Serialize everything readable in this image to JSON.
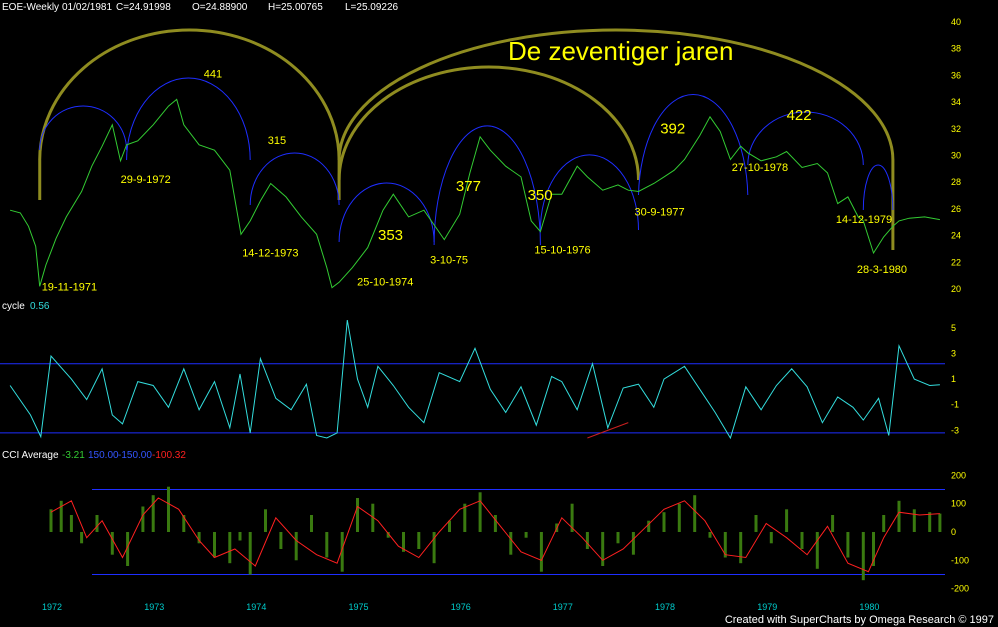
{
  "header": {
    "symbol": "EOE-Weekly",
    "date": "01/02/1981",
    "close": "C=24.91998",
    "open": "O=24.88900",
    "high": "H=25.00765",
    "low": "L=25.09226"
  },
  "footer": "Created with SuperCharts by Omega Research © 1997",
  "colors": {
    "price": "#33cc33",
    "cycle": "#33dddd",
    "cci_line": "#ff2020",
    "cci_hist": "#3a7a10",
    "band": "#1e2eff",
    "arc_big": "#8f8c20",
    "arc_small": "#1e2eff",
    "text_yellow": "#ffff00",
    "axis": "#ffff00",
    "xaxis": "#00cccc"
  },
  "chart_data": [
    {
      "type": "line",
      "name": "price-panel",
      "title": "De zeventiger jaren",
      "ylim": [
        20,
        40
      ],
      "yticks": [
        "20",
        "22",
        "24",
        "26",
        "28",
        "30",
        "32",
        "34",
        "36",
        "38",
        "40"
      ],
      "xlim": [
        1971.55,
        1980.75
      ],
      "series": [
        {
          "name": "",
          "x": [
            1971.6,
            1971.7,
            1971.78,
            1971.85,
            1971.89,
            1971.95,
            1972.05,
            1972.15,
            1972.3,
            1972.4,
            1972.5,
            1972.6,
            1972.68,
            1972.74,
            1972.85,
            1973.0,
            1973.15,
            1973.23,
            1973.3,
            1973.45,
            1973.6,
            1973.75,
            1973.86,
            1973.95,
            1974.05,
            1974.15,
            1974.3,
            1974.45,
            1974.6,
            1974.7,
            1974.75,
            1974.82,
            1974.95,
            1975.1,
            1975.25,
            1975.35,
            1975.5,
            1975.65,
            1975.75,
            1975.85,
            1976.0,
            1976.1,
            1976.2,
            1976.3,
            1976.45,
            1976.6,
            1976.7,
            1976.79,
            1976.9,
            1977.0,
            1977.15,
            1977.25,
            1977.4,
            1977.55,
            1977.65,
            1977.75,
            1977.9,
            1978.0,
            1978.1,
            1978.2,
            1978.35,
            1978.45,
            1978.55,
            1978.65,
            1978.75,
            1978.82,
            1978.95,
            1979.1,
            1979.2,
            1979.35,
            1979.5,
            1979.6,
            1979.7,
            1979.8,
            1979.9,
            1979.95,
            1980.05,
            1980.15,
            1980.24,
            1980.3,
            1980.4,
            1980.55,
            1980.7
          ],
          "y": [
            25.9,
            25.7,
            24.7,
            23.2,
            20.2,
            21.8,
            23.8,
            25.4,
            27.3,
            29.2,
            30.7,
            32.3,
            29.6,
            30.8,
            31.1,
            32.3,
            33.7,
            34.2,
            32.3,
            30.8,
            30.4,
            28.9,
            24.1,
            25.1,
            26.6,
            27.9,
            26.9,
            25.4,
            24.1,
            21.6,
            20.1,
            20.5,
            21.6,
            23.1,
            25.9,
            27.1,
            25.4,
            25.9,
            24.8,
            23.7,
            25.6,
            28.7,
            31.4,
            30.4,
            29.2,
            28.4,
            25.1,
            24.3,
            27.1,
            27.1,
            29.2,
            28.4,
            27.4,
            27.8,
            27.4,
            27.3,
            27.9,
            28.4,
            28.9,
            29.7,
            31.5,
            32.9,
            31.8,
            29.7,
            30.7,
            30.2,
            29.6,
            29.9,
            30.3,
            29.1,
            29.4,
            28.7,
            26.4,
            26.9,
            25.4,
            25.1,
            22.7,
            23.9,
            24.7,
            25.1,
            25.3,
            25.4,
            25.2
          ]
        }
      ],
      "annotations": [
        {
          "text": "19-11-1971",
          "x": 1971.89,
          "y": 20.2
        },
        {
          "text": "29-9-1972",
          "x": 1972.74,
          "y": 29.6
        },
        {
          "text": "441",
          "x": 1973.3,
          "y": 34.2
        },
        {
          "text": "14-12-1973",
          "x": 1973.95,
          "y": 24.1
        },
        {
          "text": "315",
          "x": 1974.2,
          "y": 28.6
        },
        {
          "text": "25-10-1974",
          "x": 1974.82,
          "y": 20.1
        },
        {
          "text": "353",
          "x": 1975.25,
          "y": 25.9
        },
        {
          "text": "3-10-75",
          "x": 1975.75,
          "y": 23.7
        },
        {
          "text": "377",
          "x": 1976.1,
          "y": 28.7
        },
        {
          "text": "350",
          "x": 1976.9,
          "y": 27.4
        },
        {
          "text": "15-10-1976",
          "x": 1976.79,
          "y": 24.3
        },
        {
          "text": "30-9-1977",
          "x": 1977.75,
          "y": 27.3
        },
        {
          "text": "392",
          "x": 1978.1,
          "y": 31.5
        },
        {
          "text": "422",
          "x": 1979.2,
          "y": 31.3
        },
        {
          "text": "27-10-1978",
          "x": 1978.82,
          "y": 30.2
        },
        {
          "text": "14-12-1979",
          "x": 1979.8,
          "y": 26.9
        },
        {
          "text": "28-3-1980",
          "x": 1980.24,
          "y": 22.7
        }
      ],
      "cycle_arcs_big": [
        {
          "start": 1971.89,
          "end": 1974.82
        },
        {
          "start": 1974.82,
          "end": 1980.24
        },
        {
          "start": 1974.82,
          "end": 1977.75
        }
      ],
      "cycle_arcs_small": [
        {
          "start": 1971.89,
          "end": 1972.74
        },
        {
          "start": 1972.74,
          "end": 1973.95
        },
        {
          "start": 1973.95,
          "end": 1974.82
        },
        {
          "start": 1974.82,
          "end": 1975.75
        },
        {
          "start": 1975.75,
          "end": 1976.79
        },
        {
          "start": 1976.79,
          "end": 1977.75
        },
        {
          "start": 1977.75,
          "end": 1978.82
        },
        {
          "start": 1978.82,
          "end": 1979.95
        },
        {
          "start": 1979.95,
          "end": 1980.24
        }
      ]
    },
    {
      "type": "line",
      "name": "cycle-panel",
      "label": "cycle",
      "value": "0.56",
      "ylim": [
        -4.3,
        6.0
      ],
      "yticks": [
        "-3",
        "-1",
        "1",
        "3",
        "5"
      ],
      "bands": [
        2.2,
        -3.2
      ],
      "series": [
        {
          "name": "",
          "x": [
            1971.6,
            1971.8,
            1971.9,
            1972.0,
            1972.2,
            1972.35,
            1972.5,
            1972.6,
            1972.7,
            1972.85,
            1973.0,
            1973.15,
            1973.3,
            1973.45,
            1973.6,
            1973.75,
            1973.85,
            1973.95,
            1974.05,
            1974.2,
            1974.35,
            1974.5,
            1974.6,
            1974.7,
            1974.8,
            1974.9,
            1975.0,
            1975.1,
            1975.2,
            1975.35,
            1975.5,
            1975.65,
            1975.8,
            1976.0,
            1976.15,
            1976.3,
            1976.45,
            1976.6,
            1976.75,
            1976.9,
            1977.0,
            1977.15,
            1977.3,
            1977.45,
            1977.6,
            1977.75,
            1977.9,
            1978.0,
            1978.2,
            1978.35,
            1978.5,
            1978.65,
            1978.8,
            1978.95,
            1979.1,
            1979.25,
            1979.4,
            1979.55,
            1979.7,
            1979.85,
            1979.95,
            1980.1,
            1980.2,
            1980.3,
            1980.45,
            1980.6,
            1980.7
          ],
          "y": [
            0.5,
            -1.8,
            -3.5,
            2.8,
            1.0,
            -0.6,
            1.8,
            -1.8,
            -2.5,
            0.8,
            0.5,
            -1.2,
            1.8,
            -1.4,
            0.8,
            -2.8,
            1.4,
            -3.2,
            2.6,
            -0.5,
            -1.4,
            0.6,
            -3.4,
            -3.6,
            -3.2,
            5.6,
            1.0,
            -1.2,
            2.0,
            0.5,
            -1.2,
            -2.4,
            1.5,
            0.8,
            3.4,
            0.2,
            -1.6,
            0.4,
            -2.6,
            1.2,
            0.8,
            -1.4,
            2.2,
            -2.8,
            0.3,
            0.6,
            -1.2,
            1.0,
            2.0,
            0.2,
            -1.6,
            -3.6,
            0.4,
            -1.4,
            0.5,
            1.8,
            0.4,
            -2.4,
            -0.4,
            -1.2,
            -2.2,
            -0.5,
            -3.4,
            3.6,
            1.0,
            0.5,
            0.56
          ]
        }
      ],
      "trendline": {
        "x": [
          1977.25,
          1977.65
        ],
        "y": [
          -3.6,
          -2.4
        ]
      }
    },
    {
      "type": "bar",
      "name": "cci-panel",
      "label": "CCI Average",
      "values_text": [
        "-3.21",
        "150.00",
        "-150.00",
        "-100.32"
      ],
      "ylim": [
        -240,
        240
      ],
      "yticks": [
        "-200",
        "-100",
        "0",
        "100",
        "200"
      ],
      "bands": [
        150,
        -150
      ],
      "x_categories": [
        "1972",
        "1973",
        "1974",
        "1975",
        "1976",
        "1977",
        "1978",
        "1979",
        "1980"
      ],
      "series": [
        {
          "name": "",
          "x": [
            1972.0,
            1972.1,
            1972.2,
            1972.3,
            1972.45,
            1972.6,
            1972.75,
            1972.9,
            1973.0,
            1973.15,
            1973.3,
            1973.45,
            1973.6,
            1973.75,
            1973.85,
            1973.95,
            1974.1,
            1974.25,
            1974.4,
            1974.55,
            1974.7,
            1974.85,
            1975.0,
            1975.15,
            1975.3,
            1975.45,
            1975.6,
            1975.75,
            1975.9,
            1976.05,
            1976.2,
            1976.35,
            1976.5,
            1976.65,
            1976.8,
            1976.95,
            1977.1,
            1977.25,
            1977.4,
            1977.55,
            1977.7,
            1977.85,
            1978.0,
            1978.15,
            1978.3,
            1978.45,
            1978.6,
            1978.75,
            1978.9,
            1979.05,
            1979.2,
            1979.35,
            1979.5,
            1979.65,
            1979.8,
            1979.95,
            1980.05,
            1980.15,
            1980.3,
            1980.45,
            1980.6,
            1980.7
          ],
          "y": [
            80,
            110,
            60,
            -40,
            60,
            -80,
            -120,
            90,
            130,
            160,
            60,
            -40,
            -90,
            -110,
            -30,
            -150,
            80,
            -60,
            -100,
            60,
            -90,
            -140,
            120,
            100,
            -20,
            -70,
            -60,
            -110,
            40,
            100,
            140,
            60,
            -80,
            -20,
            -140,
            30,
            100,
            -60,
            -120,
            -40,
            -80,
            40,
            70,
            100,
            130,
            -20,
            -90,
            -110,
            60,
            -40,
            80,
            -60,
            -130,
            60,
            -90,
            -170,
            -120,
            60,
            110,
            80,
            70,
            65
          ]
        }
      ],
      "avg_line": {
        "x": [
          1972.0,
          1972.2,
          1972.35,
          1972.5,
          1972.7,
          1972.9,
          1973.05,
          1973.25,
          1973.45,
          1973.6,
          1973.8,
          1974.0,
          1974.2,
          1974.4,
          1974.6,
          1974.8,
          1975.0,
          1975.2,
          1975.4,
          1975.6,
          1975.8,
          1976.0,
          1976.2,
          1976.4,
          1976.6,
          1976.8,
          1977.0,
          1977.2,
          1977.4,
          1977.6,
          1977.8,
          1978.0,
          1978.2,
          1978.4,
          1978.6,
          1978.8,
          1979.0,
          1979.2,
          1979.4,
          1979.6,
          1979.8,
          1980.0,
          1980.15,
          1980.3,
          1980.5,
          1980.7
        ],
        "y": [
          70,
          110,
          -20,
          40,
          -90,
          60,
          120,
          80,
          -30,
          -90,
          -60,
          -120,
          50,
          -30,
          -80,
          -110,
          90,
          40,
          -50,
          -90,
          0,
          80,
          110,
          20,
          -70,
          -100,
          50,
          -20,
          -100,
          -60,
          10,
          80,
          110,
          40,
          -80,
          -90,
          30,
          -20,
          -80,
          20,
          -110,
          -140,
          -20,
          70,
          60,
          65
        ]
      },
      "xlim": [
        1971.55,
        1980.75
      ]
    }
  ]
}
